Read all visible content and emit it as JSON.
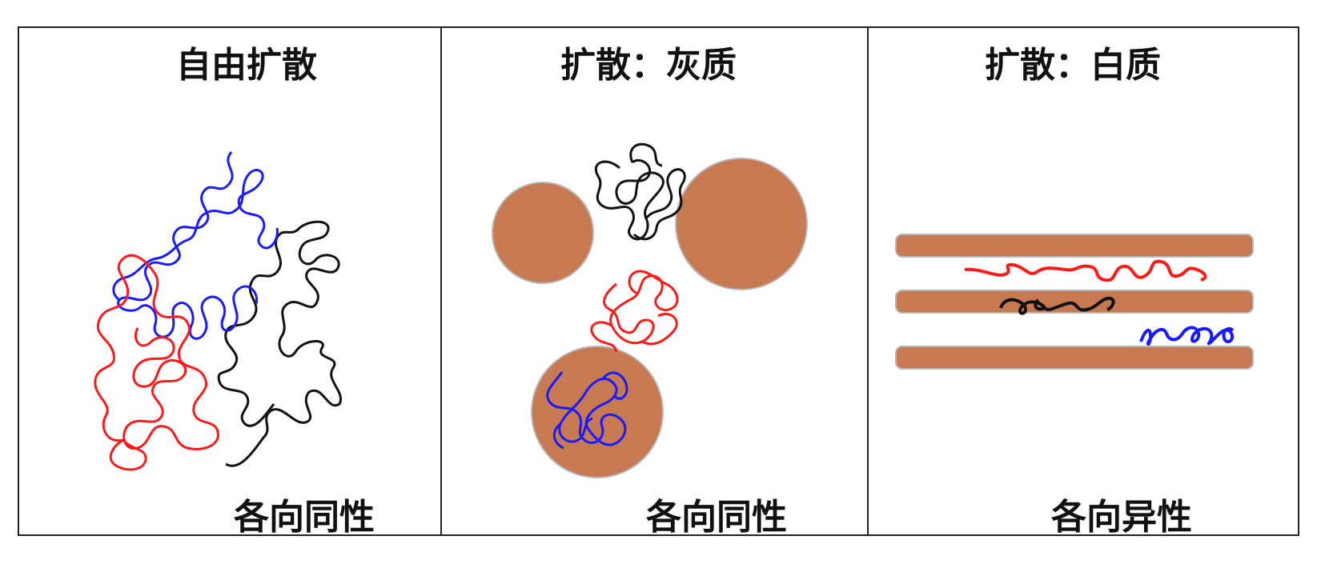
{
  "panels": [
    {
      "title": "自由扩散",
      "caption": "各向同性"
    },
    {
      "title": "扩散：灰质",
      "caption": "各向同性"
    },
    {
      "title": "扩散：白质",
      "caption": "各向异性"
    }
  ],
  "colors": {
    "cell": "#C77A52",
    "cell_edge": "#B0B0B0",
    "walk_red": "#FF1A1A",
    "walk_blue": "#1A1AFF",
    "walk_black": "#111111"
  }
}
